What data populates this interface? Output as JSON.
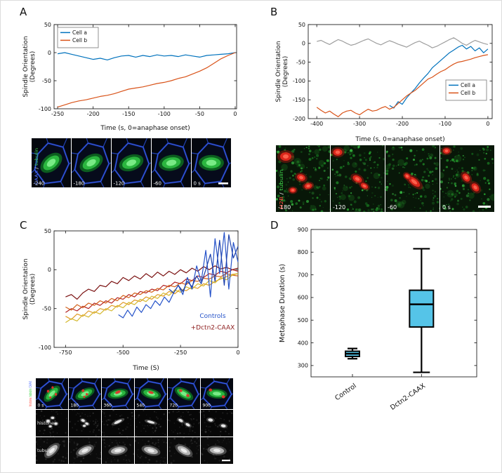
{
  "panels": {
    "a": {
      "letter": "A"
    },
    "b": {
      "letter": "B"
    },
    "c": {
      "letter": "C"
    },
    "d": {
      "letter": "D"
    }
  },
  "strips": {
    "a": {
      "channel_label": [
        {
          "text": "CAAX",
          "color": "#4f6fff"
        },
        {
          "text": " / ",
          "color": "#ffffff"
        },
        {
          "text": "tubulin",
          "color": "#3fd44a"
        }
      ],
      "timestamps": [
        "-240",
        "-180",
        "-120",
        "-60",
        "0 s"
      ]
    },
    "b": {
      "channel_label": [
        {
          "text": "H2B",
          "color": "#ff4f42"
        },
        {
          "text": " / ",
          "color": "#ffffff"
        },
        {
          "text": "tubulin",
          "color": "#3fd44a"
        }
      ],
      "timestamps": [
        "-180",
        "-120",
        "-60",
        "0 s"
      ]
    },
    "c": {
      "row1_channel_label": [
        {
          "text": "histone",
          "color": "#ff4f42"
        },
        {
          "text": "/",
          "color": "#dddddd"
        },
        {
          "text": "tubulin",
          "color": "#3fd44a"
        },
        {
          "text": "/",
          "color": "#dddddd"
        },
        {
          "text": "CAAX",
          "color": "#4f6fff"
        }
      ],
      "row2_label": "histone",
      "row3_label": "tubulin",
      "timestamps": [
        "0 s",
        "180",
        "360",
        "540",
        "720",
        "900"
      ]
    }
  },
  "chart_data": [
    {
      "id": "panel_a",
      "type": "line",
      "title": "",
      "xlabel": "Time (s, 0=anaphase onset)",
      "ylabel": [
        "Spindle Orientation",
        "(Degrees)"
      ],
      "xlim": [
        -255,
        2
      ],
      "ylim": [
        -100,
        50
      ],
      "xticks": [
        -250,
        -200,
        -150,
        -100,
        -50,
        0
      ],
      "yticks": [
        -100,
        -50,
        0,
        50
      ],
      "legend_position": "top-left",
      "series": [
        {
          "name": "Cell a",
          "color": "#0072BD",
          "x_start": -250,
          "x_step": 10,
          "y": [
            -2,
            0,
            -3,
            -6,
            -9,
            -12,
            -10,
            -13,
            -9,
            -6,
            -5,
            -8,
            -5,
            -7,
            -4,
            -6,
            -5,
            -7,
            -4,
            -6,
            -8,
            -5,
            -4,
            -3,
            -2,
            0
          ]
        },
        {
          "name": "Cell b",
          "color": "#D95319",
          "x_start": -250,
          "x_step": 10,
          "y": [
            -97,
            -93,
            -89,
            -86,
            -84,
            -81,
            -78,
            -76,
            -73,
            -69,
            -65,
            -63,
            -61,
            -58,
            -55,
            -53,
            -50,
            -46,
            -43,
            -38,
            -33,
            -27,
            -19,
            -11,
            -5,
            0
          ]
        }
      ]
    },
    {
      "id": "panel_b",
      "type": "line",
      "title": "",
      "xlabel": "Time (s, 0=anaphase onset)",
      "ylabel": [
        "Spindle Orientation",
        "(Degrees)"
      ],
      "xlim": [
        -420,
        10
      ],
      "ylim": [
        -200,
        50
      ],
      "xticks": [
        -400,
        -300,
        -200,
        -100,
        0
      ],
      "yticks": [
        -200,
        -150,
        -100,
        -50,
        0,
        50
      ],
      "legend_position": "bottom-right",
      "series": [
        {
          "name": "",
          "color": "#9e9e9e",
          "x_start": -400,
          "x_step": 10,
          "y": [
            5,
            8,
            2,
            -3,
            4,
            10,
            6,
            0,
            -5,
            -2,
            3,
            8,
            12,
            6,
            0,
            -4,
            2,
            7,
            3,
            -2,
            -6,
            -10,
            -4,
            2,
            6,
            0,
            -5,
            -12,
            -8,
            -2,
            4,
            10,
            15,
            8,
            0,
            -5,
            2,
            8,
            4,
            0,
            -3
          ]
        },
        {
          "name": "Cell a",
          "color": "#0072BD",
          "x_start": -230,
          "x_step": 10,
          "y": [
            -165,
            -172,
            -155,
            -162,
            -145,
            -132,
            -120,
            -105,
            -92,
            -80,
            -65,
            -55,
            -45,
            -35,
            -25,
            -18,
            -10,
            -5,
            -15,
            -8,
            -20,
            -12,
            -25,
            -15
          ]
        },
        {
          "name": "Cell b",
          "color": "#D95319",
          "x_start": -400,
          "x_step": 10,
          "y": [
            -170,
            -178,
            -185,
            -180,
            -188,
            -195,
            -185,
            -180,
            -178,
            -185,
            -190,
            -182,
            -175,
            -180,
            -178,
            -172,
            -168,
            -175,
            -170,
            -160,
            -150,
            -140,
            -132,
            -125,
            -115,
            -105,
            -95,
            -90,
            -82,
            -75,
            -70,
            -62,
            -55,
            -50,
            -48,
            -45,
            -42,
            -38,
            -35,
            -32,
            -30
          ]
        }
      ]
    },
    {
      "id": "panel_c",
      "type": "line",
      "title": "",
      "xlabel": "Time (S)",
      "ylabel": [
        "Spindle Orientation",
        "(Degrees)"
      ],
      "xlim": [
        -800,
        0
      ],
      "ylim": [
        -100,
        50
      ],
      "xticks": [
        -750,
        -500,
        -250,
        0
      ],
      "yticks": [
        -100,
        -50,
        0,
        50
      ],
      "legend_position": "none",
      "annotations": [
        {
          "text": "Controls",
          "color": "#2653c9",
          "x": -110,
          "y": -62
        },
        {
          "text": "+Dctn2-CAAX",
          "color": "#8b1a1a",
          "x": -110,
          "y": -77
        }
      ],
      "series": [
        {
          "name": "",
          "group": "+Dctn2-CAAX",
          "color": "#7a1010",
          "x_start": -750,
          "x_step": 25,
          "y": [
            -35,
            -32,
            -38,
            -30,
            -25,
            -28,
            -20,
            -22,
            -15,
            -18,
            -10,
            -14,
            -8,
            -12,
            -5,
            -10,
            -3,
            -8,
            -2,
            -6,
            0,
            -4,
            2,
            -2,
            4,
            0,
            5,
            1,
            3,
            0,
            2
          ]
        },
        {
          "name": "",
          "group": "+Dctn2-CAAX",
          "color": "#b22222",
          "x_start": -750,
          "x_step": 25,
          "y": [
            -55,
            -50,
            -53,
            -47,
            -50,
            -43,
            -46,
            -40,
            -43,
            -36,
            -38,
            -32,
            -35,
            -28,
            -30,
            -25,
            -27,
            -20,
            -22,
            -16,
            -18,
            -12,
            -14,
            -8,
            -10,
            -5,
            -7,
            -2,
            -4,
            0,
            -2
          ]
        },
        {
          "name": "",
          "group": "+Dctn2-CAAX",
          "color": "#d2601a",
          "x_start": -750,
          "x_step": 25,
          "y": [
            -48,
            -52,
            -45,
            -49,
            -43,
            -46,
            -40,
            -43,
            -37,
            -40,
            -33,
            -36,
            -30,
            -32,
            -27,
            -29,
            -24,
            -26,
            -20,
            -22,
            -17,
            -19,
            -14,
            -15,
            -11,
            -12,
            -8,
            -9,
            -5,
            -7,
            -8
          ]
        },
        {
          "name": "",
          "group": "+Dctn2-CAAX",
          "color": "#e09b25",
          "x_start": -750,
          "x_step": 25,
          "y": [
            -60,
            -64,
            -57,
            -60,
            -53,
            -56,
            -50,
            -52,
            -46,
            -48,
            -42,
            -45,
            -39,
            -41,
            -35,
            -38,
            -32,
            -34,
            -28,
            -31,
            -25,
            -27,
            -22,
            -24,
            -18,
            -20,
            -15,
            -12,
            -9,
            -6,
            -5
          ]
        },
        {
          "name": "",
          "group": "+Dctn2-CAAX",
          "color": "#d4b82e",
          "x_start": -750,
          "x_step": 25,
          "y": [
            -68,
            -63,
            -66,
            -58,
            -61,
            -54,
            -57,
            -50,
            -53,
            -46,
            -49,
            -42,
            -45,
            -38,
            -41,
            -34,
            -37,
            -30,
            -33,
            -26,
            -29,
            -22,
            -25,
            -18,
            -21,
            -14,
            -17,
            -10,
            -13,
            -7,
            -5
          ]
        },
        {
          "name": "",
          "group": "Controls",
          "color": "#2653c9",
          "x_start": -520,
          "x_step": 20,
          "y": [
            -58,
            -62,
            -52,
            -60,
            -48,
            -55,
            -45,
            -50,
            -40,
            -46,
            -35,
            -42,
            -30,
            -20,
            -32,
            -10,
            -25,
            5,
            -15,
            25,
            -35,
            40,
            -5,
            48,
            -25,
            35,
            10
          ]
        },
        {
          "name": "",
          "group": "Controls",
          "color": "#1b3faa",
          "x_start": -300,
          "x_step": 20,
          "y": [
            -25,
            -30,
            -20,
            -28,
            -15,
            -22,
            -8,
            -18,
            0,
            20,
            -15,
            38,
            -20,
            45,
            15,
            30
          ]
        }
      ]
    },
    {
      "id": "panel_d",
      "type": "box",
      "title": "",
      "xlabel": "",
      "ylabel": [
        "Metaphase Duration (s)"
      ],
      "xlim": [
        0.4,
        2.8
      ],
      "ylim": [
        250,
        900
      ],
      "yticks": [
        300,
        400,
        500,
        600,
        700,
        800,
        900
      ],
      "categories": [
        "Control",
        "Dctn2-CAAX"
      ],
      "box_fill": "#55c4e8",
      "boxes": [
        {
          "label": "Control",
          "whisker_low": 330,
          "q1": 340,
          "median": 352,
          "q3": 363,
          "whisker_high": 375
        },
        {
          "label": "Dctn2-CAAX",
          "whisker_low": 270,
          "q1": 470,
          "median": 570,
          "q3": 632,
          "whisker_high": 815
        }
      ]
    }
  ]
}
